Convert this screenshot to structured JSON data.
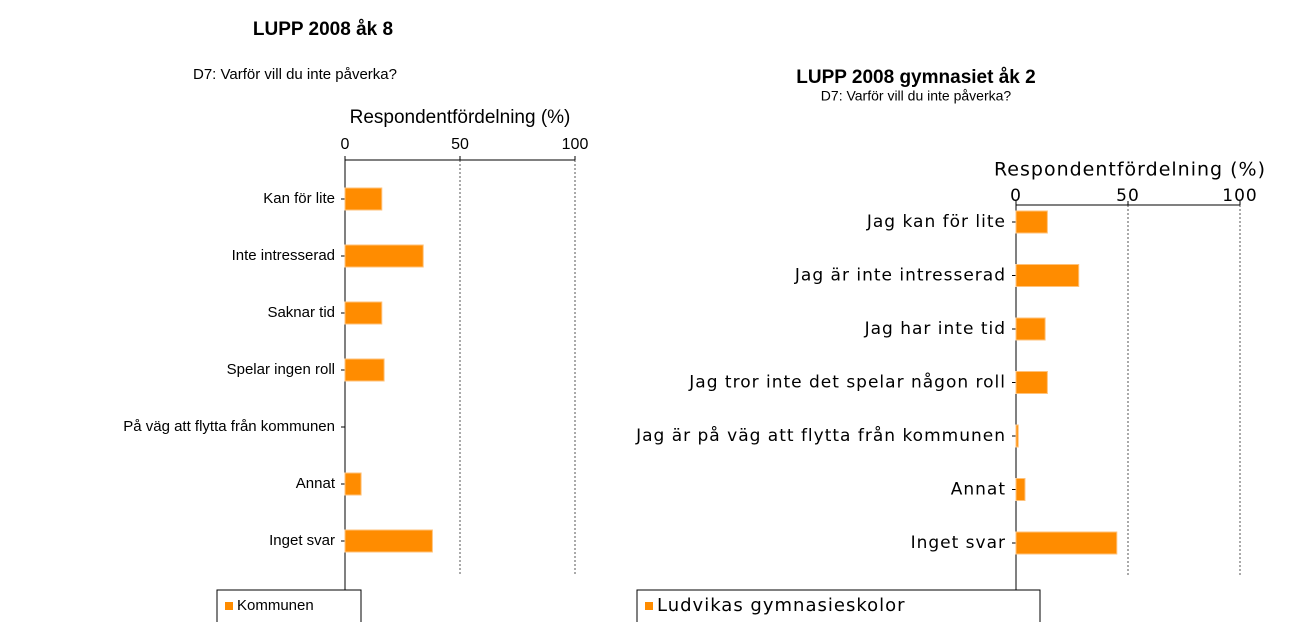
{
  "chart_data": [
    {
      "type": "bar",
      "orientation": "horizontal",
      "title": "LUPP 2008 åk 8",
      "subtitle": "D7: Varför vill du inte påverka?",
      "x_label": "Respondentfördelning (%)",
      "categories": [
        "Kan för lite",
        "Inte intresserad",
        "Saknar  tid",
        "Spelar ingen roll",
        "På väg att flytta från kommunen",
        "Annat",
        "Inget svar"
      ],
      "series": [
        {
          "name": "Kommunen",
          "color": "#ff8c00",
          "values": [
            16,
            34,
            16,
            17,
            0,
            7,
            38
          ]
        }
      ],
      "xlim": [
        0,
        100
      ],
      "xticks": [
        0,
        50,
        100
      ],
      "grid": true
    },
    {
      "type": "bar",
      "orientation": "horizontal",
      "title": "LUPP 2008 gymnasiet åk 2",
      "subtitle": "D7: Varför vill du inte påverka?",
      "x_label": "Respondentfördelning (%)",
      "categories": [
        "Jag kan för lite",
        "Jag är inte intresserad",
        "Jag har inte tid",
        "Jag tror inte det spelar någon roll",
        "Jag är på väg att flytta från kommunen",
        "Annat",
        "Inget svar"
      ],
      "series": [
        {
          "name": "Ludvikas gymnasieskolor",
          "color": "#ff8c00",
          "values": [
            14,
            28,
            13,
            14,
            1,
            4,
            45
          ]
        }
      ],
      "xlim": [
        0,
        100
      ],
      "xticks": [
        0,
        50,
        100
      ],
      "grid": true
    }
  ]
}
